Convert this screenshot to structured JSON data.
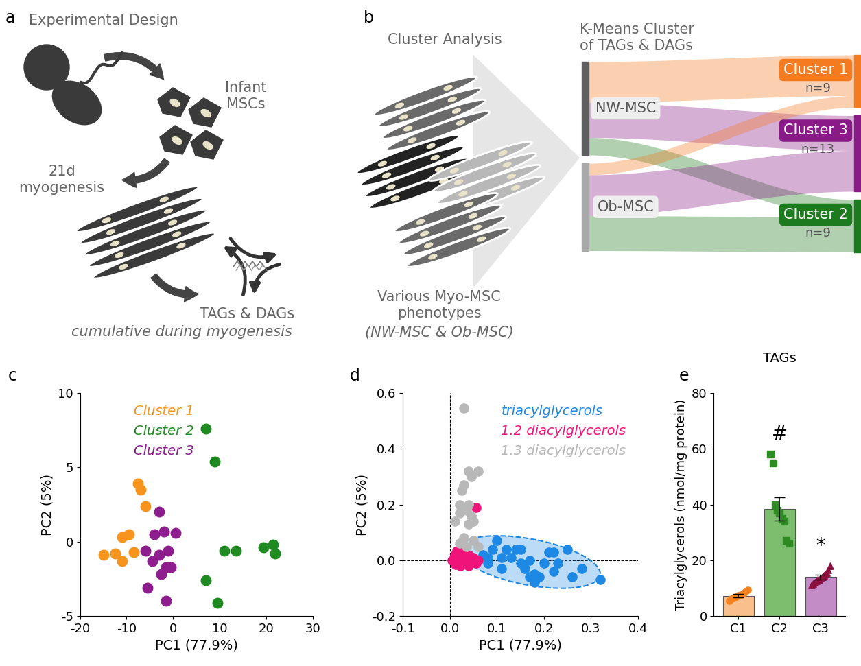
{
  "diagram": {
    "panel_a": {
      "panel_label": "a",
      "title": "Experimental Design",
      "cells_label": "Infant\nMSCs",
      "myogenesis_label": "21d\nmyogenesis",
      "product_label": "TAGs & DAGs",
      "product_note": "cumulative during myogenesis"
    },
    "panel_b": {
      "panel_label": "b",
      "title": "Cluster Analysis",
      "phenotype_label": "Various Myo-MSC\nphenotypes",
      "phenotype_note": "(NW-MSC & Ob-MSC)",
      "sankey": {
        "title": "K-Means Cluster\nof TAGs & DAGs",
        "sources": [
          {
            "label": "NW-MSC",
            "color": "#5f5f5f"
          },
          {
            "label": "Ob-MSC",
            "color": "#a9a9a9"
          }
        ],
        "targets": [
          {
            "label": "Cluster 1",
            "n_label": "n=9",
            "color": "#F47B20"
          },
          {
            "label": "Cluster 3",
            "n_label": "n=13",
            "color": "#8B1A89"
          },
          {
            "label": "Cluster 2",
            "n_label": "n=9",
            "color": "#1E7A1E"
          }
        ],
        "flows": [
          [
            7,
            6,
            3
          ],
          [
            2,
            7,
            6
          ]
        ]
      }
    }
  },
  "chart_data": [
    {
      "panel_label": "c",
      "type": "scatter",
      "xlabel": "PC1 (77.9%)",
      "ylabel": "PC2 (5%)",
      "xlim": [
        -20,
        30
      ],
      "ylim": [
        -5,
        10
      ],
      "xticks": [
        -20,
        -10,
        0,
        10,
        20,
        30
      ],
      "yticks": [
        -5,
        0,
        5,
        10
      ],
      "legend": "upper left",
      "series": [
        {
          "name": "Cluster 1",
          "color": "#F7941D",
          "marker": "circle",
          "x": [
            -7.5,
            -7,
            -6,
            -9.5,
            -11,
            -15,
            -12.5,
            -11,
            -8.5
          ],
          "y": [
            3.9,
            3.5,
            2.4,
            0.5,
            0.3,
            -0.9,
            -0.8,
            -1.3,
            -0.7
          ]
        },
        {
          "name": "Cluster 2",
          "color": "#1F8A1F",
          "marker": "circle",
          "x": [
            7,
            9,
            11,
            13.5,
            19.5,
            21.5,
            22,
            7,
            9.5
          ],
          "y": [
            7.6,
            5.4,
            -0.6,
            -0.6,
            -0.4,
            -0.2,
            -0.8,
            -2.6,
            -4.1
          ]
        },
        {
          "name": "Cluster 3",
          "color": "#8E1E8E",
          "marker": "circle",
          "x": [
            -3,
            -2,
            -4,
            0.5,
            -6,
            -3,
            -1,
            -4.5,
            -2.5,
            -1.5,
            -0.5,
            -5.5,
            -1.5
          ],
          "y": [
            2,
            0.7,
            0.5,
            0.6,
            -0.6,
            -0.9,
            -0.6,
            -1.3,
            -2.2,
            -1.7,
            -1.7,
            -3.1,
            -4
          ]
        }
      ]
    },
    {
      "panel_label": "d",
      "type": "scatter",
      "xlabel": "PC1 (77.9%)",
      "ylabel": "PC2 (5%)",
      "xlim": [
        -0.1,
        0.4
      ],
      "ylim": [
        -0.2,
        0.6
      ],
      "xticks": [
        -0.1,
        {
          "value": 0,
          "label": "0.0"
        },
        0.1,
        0.2,
        0.3,
        0.4
      ],
      "yticks": [
        -0.2,
        {
          "value": 0,
          "label": "0.0"
        },
        0.2,
        0.4,
        0.6
      ],
      "legend": "upper right",
      "series": [
        {
          "name": "triacylglycerols",
          "color": "#1E88E5",
          "marker": "circle",
          "x": [
            0.07,
            0.08,
            0.08,
            0.09,
            0.1,
            0.11,
            0.11,
            0.12,
            0.13,
            0.14,
            0.15,
            0.15,
            0.16,
            0.17,
            0.17,
            0.18,
            0.18,
            0.19,
            0.2,
            0.21,
            0.22,
            0.22,
            0.23,
            0.25,
            0.26,
            0.28,
            0.32
          ],
          "y": [
            0.02,
            0.01,
            -0.01,
            0.04,
            0.07,
            0.01,
            -0.03,
            0.04,
            0.01,
            0.04,
            0.04,
            -0.01,
            -0.03,
            -0.06,
            0.0,
            -0.05,
            -0.08,
            -0.06,
            -0.01,
            0.03,
            0.03,
            -0.04,
            -0.01,
            0.04,
            -0.06,
            -0.03,
            -0.07
          ]
        },
        {
          "name": "1.2 diacylglycerols",
          "color": "#F0147A",
          "marker": "circle",
          "x": [
            0.005,
            0.01,
            0.012,
            0.015,
            0.02,
            0.022,
            0.025,
            0.03,
            0.03,
            0.035,
            0.04,
            0.04,
            0.045,
            0.05,
            0.055,
            0.06,
            0.055
          ],
          "y": [
            0.0,
            0.02,
            -0.015,
            0.035,
            0.01,
            -0.02,
            0.0,
            0.03,
            -0.01,
            0.015,
            -0.02,
            0.02,
            0.0,
            0.01,
            -0.01,
            0.0,
            0.19
          ]
        },
        {
          "name": "1.3 diacylglycerols",
          "color": "#B8B8B8",
          "marker": "circle",
          "x": [
            0.03,
            0.04,
            0.045,
            0.06,
            0.02,
            0.025,
            0.03,
            0.04,
            0.045,
            0.01,
            0.02,
            0.035,
            0.05,
            0.04,
            0.03,
            0.02,
            0.035,
            0.05,
            0.06
          ],
          "y": [
            0.545,
            0.32,
            0.3,
            0.32,
            0.2,
            0.25,
            0.27,
            0.2,
            0.16,
            0.14,
            0.17,
            0.18,
            0.14,
            0.13,
            0.08,
            0.06,
            0.05,
            0.07,
            0.05
          ]
        }
      ]
    },
    {
      "panel_label": "e",
      "type": "bar",
      "title": "TAGs",
      "ylabel": "Triacylglycerols (nmol/mg protein)",
      "categories": [
        "C1",
        "C2",
        "C3"
      ],
      "values": [
        7.2,
        38.5,
        14.0
      ],
      "errors": [
        0.6,
        4.2,
        0.8
      ],
      "colors": [
        "#F9BF8C",
        "#7DBE6E",
        "#C48CC6"
      ],
      "ylim": [
        0,
        80
      ],
      "yticks": [
        0,
        20,
        40,
        60,
        80
      ],
      "points": [
        {
          "color": "#F58220",
          "marker": "circle",
          "values": [
            5.5,
            6.2,
            6.8,
            7.0,
            7.3,
            7.6,
            8.0,
            8.6,
            9.4
          ]
        },
        {
          "color": "#2E8B22",
          "marker": "square",
          "values": [
            58,
            55,
            40,
            38,
            37,
            35,
            34,
            27,
            26
          ]
        },
        {
          "color": "#8B1040",
          "marker": "triangle",
          "values": [
            11,
            11.5,
            12,
            12.5,
            13,
            13,
            13.5,
            14,
            14.5,
            15,
            15.5,
            16.5,
            18
          ]
        }
      ],
      "annotations": [
        {
          "text": "#",
          "category": "C2"
        },
        {
          "text": "*",
          "category": "C3"
        }
      ]
    }
  ]
}
